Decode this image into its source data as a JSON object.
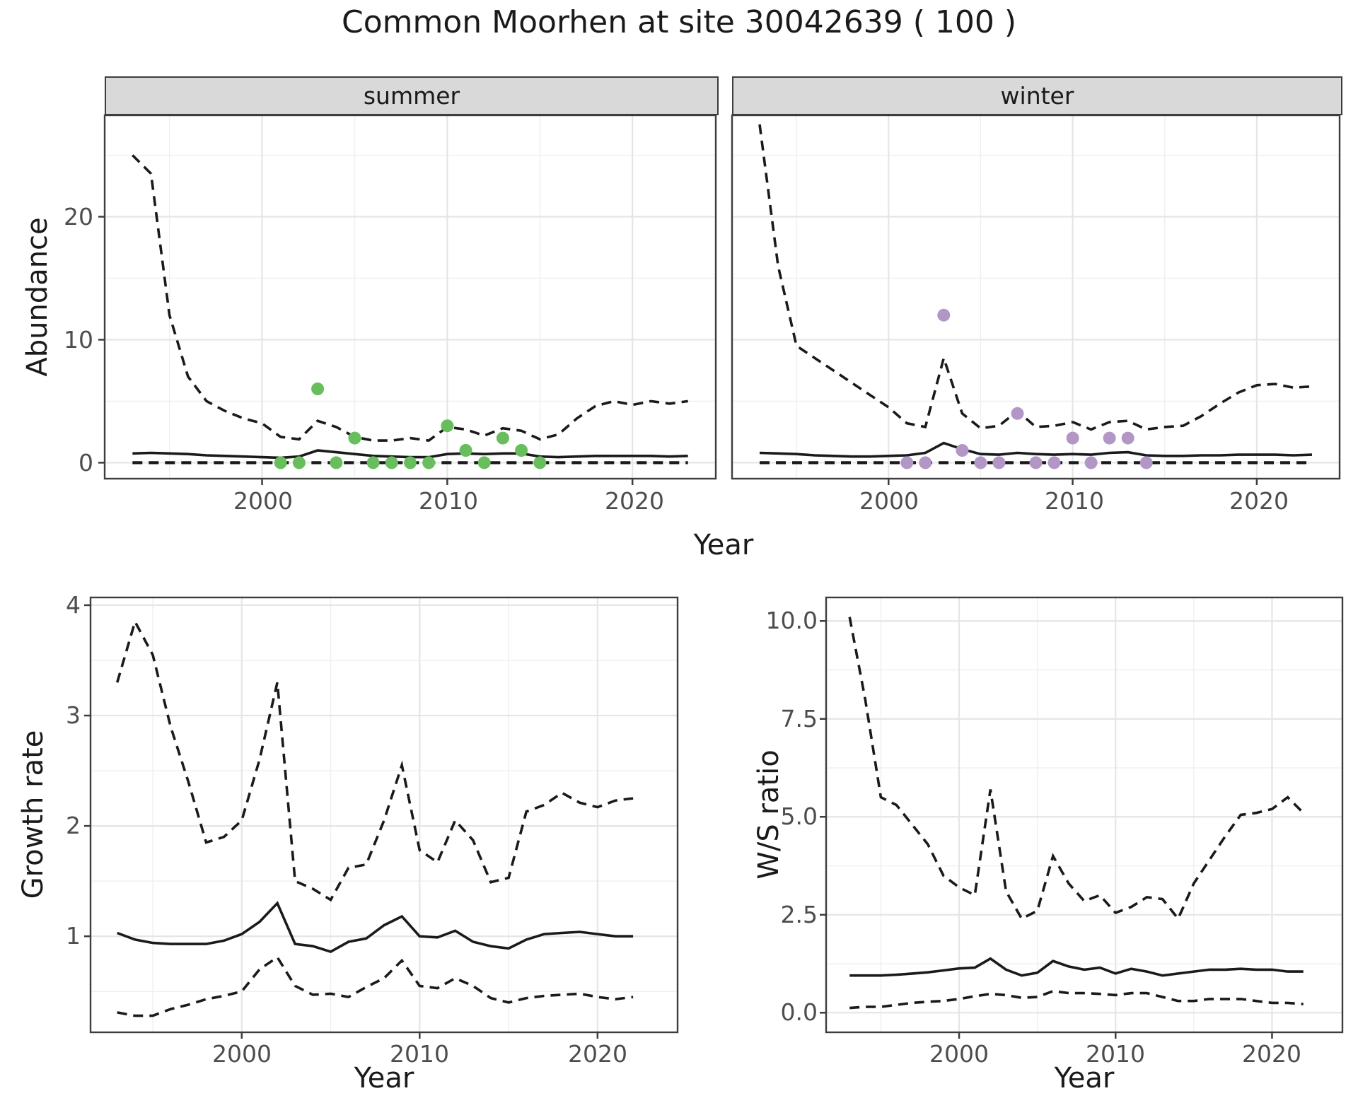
{
  "title": "Common Moorhen at site 30042639 ( 100 )",
  "colors": {
    "line": "#1a1a1a",
    "summer_points": "#68bd5c",
    "winter_points": "#b297c6",
    "grid_major": "#e5e5e5",
    "grid_minor": "#efefef",
    "panel_border": "#3d3d3d",
    "strip_background": "#d9d9d9",
    "tick_text": "#4d4d4d"
  },
  "chart_data": [
    {
      "id": "abundance_summer",
      "type": "line",
      "facet_label": "summer",
      "ylabel": "Abundance",
      "xlabel": "Year",
      "ylim": [
        -1.3,
        28.25
      ],
      "xlim": [
        1991.5,
        2024.5
      ],
      "ytick_labels": [
        "20",
        "10",
        "0"
      ],
      "xtick_labels": [
        "2000",
        "2010",
        "2020"
      ],
      "grid": true,
      "years": [
        1993,
        1994,
        1995,
        1996,
        1997,
        1998,
        1999,
        2000,
        2001,
        2002,
        2003,
        2004,
        2005,
        2006,
        2007,
        2008,
        2009,
        2010,
        2011,
        2012,
        2013,
        2014,
        2015,
        2016,
        2017,
        2018,
        2019,
        2020,
        2021,
        2022,
        2023
      ],
      "series": [
        {
          "name": "upper_95ci",
          "style": "dashed",
          "values": [
            25,
            23.5,
            12,
            7,
            5,
            4.2,
            3.6,
            3.2,
            2.1,
            1.9,
            3.4,
            2.9,
            2.1,
            1.8,
            1.8,
            2.0,
            1.8,
            2.9,
            2.7,
            2.2,
            2.8,
            2.6,
            1.9,
            2.3,
            3.6,
            4.6,
            5.0,
            4.7,
            5.0,
            4.8,
            5.0
          ]
        },
        {
          "name": "median",
          "style": "solid",
          "values": [
            0.75,
            0.8,
            0.75,
            0.7,
            0.6,
            0.55,
            0.5,
            0.45,
            0.4,
            0.5,
            1.0,
            0.85,
            0.7,
            0.55,
            0.5,
            0.45,
            0.45,
            0.7,
            0.75,
            0.7,
            0.75,
            0.75,
            0.5,
            0.45,
            0.5,
            0.55,
            0.55,
            0.55,
            0.55,
            0.5,
            0.55
          ]
        },
        {
          "name": "lower_95ci",
          "style": "dashed",
          "values": [
            0,
            0,
            0,
            0,
            0,
            0,
            0,
            0,
            0,
            0,
            0,
            0,
            0,
            0,
            0,
            0,
            0,
            0,
            0,
            0,
            0,
            0,
            0,
            0,
            0,
            0,
            0,
            0,
            0,
            0,
            0
          ]
        }
      ],
      "points": {
        "name": "observed_counts",
        "color": "#68bd5c",
        "x": [
          2001,
          2002,
          2003,
          2004,
          2005,
          2006,
          2007,
          2008,
          2009,
          2010,
          2011,
          2012,
          2013,
          2014,
          2015
        ],
        "y": [
          0,
          0,
          6,
          0,
          2,
          0,
          0,
          0,
          0,
          3,
          1,
          0,
          2,
          1,
          0
        ]
      }
    },
    {
      "id": "abundance_winter",
      "type": "line",
      "facet_label": "winter",
      "ylabel": "Abundance",
      "xlabel": "Year",
      "ylim": [
        -1.3,
        28.25
      ],
      "xlim": [
        1991.5,
        2024.5
      ],
      "ytick_labels": [
        "20",
        "10",
        "0"
      ],
      "xtick_labels": [
        "2000",
        "2010",
        "2020"
      ],
      "grid": true,
      "years": [
        1993,
        1994,
        1995,
        1996,
        1997,
        1998,
        1999,
        2000,
        2001,
        2002,
        2003,
        2004,
        2005,
        2006,
        2007,
        2008,
        2009,
        2010,
        2011,
        2012,
        2013,
        2014,
        2015,
        2016,
        2017,
        2018,
        2019,
        2020,
        2021,
        2022,
        2023
      ],
      "series": [
        {
          "name": "upper_95ci",
          "style": "dashed",
          "values": [
            27.5,
            16,
            9.5,
            8.5,
            7.5,
            6.5,
            5.5,
            4.5,
            3.2,
            2.9,
            8.5,
            4.0,
            2.8,
            3.0,
            4.2,
            2.9,
            3.0,
            3.3,
            2.7,
            3.3,
            3.4,
            2.7,
            2.9,
            3.0,
            3.8,
            4.8,
            5.7,
            6.3,
            6.4,
            6.1,
            6.2
          ]
        },
        {
          "name": "median",
          "style": "solid",
          "values": [
            0.8,
            0.75,
            0.7,
            0.6,
            0.55,
            0.5,
            0.5,
            0.55,
            0.6,
            0.8,
            1.6,
            1.1,
            0.7,
            0.65,
            0.8,
            0.7,
            0.65,
            0.7,
            0.65,
            0.8,
            0.85,
            0.6,
            0.55,
            0.55,
            0.6,
            0.6,
            0.65,
            0.65,
            0.65,
            0.6,
            0.65
          ]
        },
        {
          "name": "lower_95ci",
          "style": "dashed",
          "values": [
            0,
            0,
            0,
            0,
            0,
            0,
            0,
            0,
            0,
            0,
            0,
            0,
            0,
            0,
            0,
            0,
            0,
            0,
            0,
            0,
            0,
            0,
            0,
            0,
            0,
            0,
            0,
            0,
            0,
            0,
            0
          ]
        }
      ],
      "points": {
        "name": "observed_counts",
        "color": "#b297c6",
        "x": [
          2001,
          2002,
          2003,
          2004,
          2005,
          2006,
          2007,
          2008,
          2009,
          2010,
          2011,
          2012,
          2013,
          2014
        ],
        "y": [
          0,
          0,
          12,
          1,
          0,
          0,
          4,
          0,
          0,
          2,
          0,
          2,
          2,
          0
        ]
      }
    },
    {
      "id": "growth_rate",
      "type": "line",
      "facet_label": "",
      "ylabel": "Growth rate",
      "xlabel": "Year",
      "ylim": [
        0.13,
        4.07
      ],
      "xlim": [
        1991.5,
        2024.5
      ],
      "ytick_labels": [
        "4",
        "3",
        "2",
        "1"
      ],
      "xtick_labels": [
        "2000",
        "2010",
        "2020"
      ],
      "grid": true,
      "years": [
        1993,
        1994,
        1995,
        1996,
        1997,
        1998,
        1999,
        2000,
        2001,
        2002,
        2003,
        2004,
        2005,
        2006,
        2007,
        2008,
        2009,
        2010,
        2011,
        2012,
        2013,
        2014,
        2015,
        2016,
        2017,
        2018,
        2019,
        2020,
        2021,
        2022
      ],
      "series": [
        {
          "name": "upper_95ci",
          "style": "dashed",
          "values": [
            3.3,
            3.85,
            3.55,
            2.9,
            2.4,
            1.85,
            1.9,
            2.05,
            2.6,
            3.3,
            1.5,
            1.43,
            1.33,
            1.62,
            1.65,
            2.05,
            2.55,
            1.78,
            1.67,
            2.05,
            1.87,
            1.49,
            1.53,
            2.13,
            2.19,
            2.3,
            2.21,
            2.17,
            2.23,
            2.25
          ]
        },
        {
          "name": "median",
          "style": "solid",
          "values": [
            1.03,
            0.97,
            0.94,
            0.93,
            0.93,
            0.93,
            0.96,
            1.02,
            1.13,
            1.3,
            0.93,
            0.91,
            0.86,
            0.95,
            0.98,
            1.1,
            1.18,
            1.0,
            0.99,
            1.05,
            0.95,
            0.91,
            0.89,
            0.97,
            1.02,
            1.03,
            1.04,
            1.02,
            1.0,
            1.0
          ]
        },
        {
          "name": "lower_95ci",
          "style": "dashed",
          "values": [
            0.31,
            0.28,
            0.28,
            0.34,
            0.38,
            0.43,
            0.46,
            0.5,
            0.7,
            0.81,
            0.55,
            0.47,
            0.48,
            0.45,
            0.54,
            0.62,
            0.78,
            0.55,
            0.53,
            0.62,
            0.55,
            0.44,
            0.4,
            0.44,
            0.46,
            0.47,
            0.48,
            0.45,
            0.43,
            0.45
          ]
        }
      ],
      "points": null
    },
    {
      "id": "ws_ratio",
      "type": "line",
      "facet_label": "",
      "ylabel": "W/S ratio",
      "xlabel": "Year",
      "ylim": [
        -0.5,
        10.6
      ],
      "xlim": [
        1991.5,
        2024.5
      ],
      "ytick_labels": [
        "10.0",
        "7.5",
        "5.0",
        "2.5",
        "0.0"
      ],
      "xtick_labels": [
        "2000",
        "2010",
        "2020"
      ],
      "grid": true,
      "years": [
        1993,
        1994,
        1995,
        1996,
        1997,
        1998,
        1999,
        2000,
        2001,
        2002,
        2003,
        2004,
        2005,
        2006,
        2007,
        2008,
        2009,
        2010,
        2011,
        2012,
        2013,
        2014,
        2015,
        2016,
        2017,
        2018,
        2019,
        2020,
        2021,
        2022
      ],
      "series": [
        {
          "name": "upper_95ci",
          "style": "dashed",
          "values": [
            10.1,
            8.0,
            5.5,
            5.3,
            4.8,
            4.3,
            3.5,
            3.2,
            3.0,
            5.7,
            3.1,
            2.4,
            2.6,
            4.0,
            3.3,
            2.85,
            3.0,
            2.55,
            2.7,
            2.95,
            2.9,
            2.4,
            3.3,
            3.9,
            4.5,
            5.05,
            5.1,
            5.2,
            5.5,
            5.1
          ]
        },
        {
          "name": "median",
          "style": "solid",
          "values": [
            0.95,
            0.95,
            0.95,
            0.97,
            1.0,
            1.03,
            1.08,
            1.13,
            1.15,
            1.38,
            1.1,
            0.95,
            1.02,
            1.32,
            1.18,
            1.1,
            1.15,
            1.0,
            1.12,
            1.05,
            0.95,
            1.0,
            1.05,
            1.1,
            1.1,
            1.12,
            1.1,
            1.1,
            1.05,
            1.05
          ]
        },
        {
          "name": "lower_95ci",
          "style": "dashed",
          "values": [
            0.12,
            0.15,
            0.15,
            0.2,
            0.25,
            0.28,
            0.3,
            0.35,
            0.42,
            0.48,
            0.45,
            0.38,
            0.4,
            0.55,
            0.5,
            0.5,
            0.48,
            0.45,
            0.5,
            0.5,
            0.4,
            0.3,
            0.3,
            0.35,
            0.35,
            0.35,
            0.3,
            0.25,
            0.25,
            0.22
          ]
        }
      ],
      "points": null
    }
  ]
}
